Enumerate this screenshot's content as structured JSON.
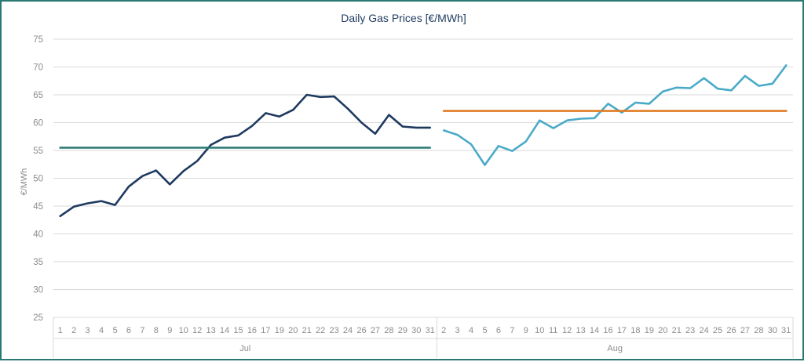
{
  "chart_data": {
    "type": "line",
    "title": "Daily Gas Prices [€/MWh]",
    "ylabel": "€/MWh",
    "xlabel": "",
    "ylim": [
      25,
      75
    ],
    "yticks": [
      25,
      30,
      35,
      40,
      45,
      50,
      55,
      60,
      65,
      70,
      75
    ],
    "grid": true,
    "legend": "none",
    "groups": [
      {
        "label": "Jul",
        "categories": [
          "1",
          "2",
          "3",
          "4",
          "5",
          "6",
          "7",
          "8",
          "9",
          "10",
          "12",
          "13",
          "14",
          "15",
          "16",
          "17",
          "19",
          "20",
          "21",
          "22",
          "23",
          "24",
          "26",
          "27",
          "28",
          "29",
          "30",
          "31"
        ]
      },
      {
        "label": "Aug",
        "categories": [
          "2",
          "3",
          "4",
          "5",
          "6",
          "7",
          "9",
          "10",
          "11",
          "12",
          "13",
          "14",
          "16",
          "17",
          "18",
          "19",
          "20",
          "21",
          "23",
          "24",
          "25",
          "26",
          "27",
          "28",
          "30",
          "31"
        ]
      }
    ],
    "series": [
      {
        "group": 0,
        "color": "#1f3a5f",
        "values": [
          43.2,
          44.9,
          45.5,
          45.9,
          45.2,
          48.5,
          50.4,
          51.4,
          48.9,
          51.3,
          53.1,
          56.0,
          57.3,
          57.7,
          59.4,
          61.7,
          61.1,
          62.3,
          65.0,
          64.6,
          64.7,
          62.5,
          60.0,
          58.0,
          61.4,
          59.3,
          59.1,
          59.1
        ]
      },
      {
        "group": 0,
        "color": "#2a7a73",
        "values": [
          55.5,
          55.5,
          55.5,
          55.5,
          55.5,
          55.5,
          55.5,
          55.5,
          55.5,
          55.5,
          55.5,
          55.5,
          55.5,
          55.5,
          55.5,
          55.5,
          55.5,
          55.5,
          55.5,
          55.5,
          55.5,
          55.5,
          55.5,
          55.5,
          55.5,
          55.5,
          55.5,
          55.5
        ]
      },
      {
        "group": 1,
        "color": "#4aaac8",
        "values": [
          58.6,
          57.8,
          56.1,
          52.4,
          55.8,
          54.9,
          56.6,
          60.4,
          59.0,
          60.4,
          60.7,
          60.8,
          63.4,
          61.8,
          63.6,
          63.4,
          65.6,
          66.3,
          66.2,
          68.0,
          66.1,
          65.8,
          68.4,
          66.6,
          67.0,
          70.3
        ]
      },
      {
        "group": 1,
        "color": "#e07b24",
        "values": [
          62.1,
          62.1,
          62.1,
          62.1,
          62.1,
          62.1,
          62.1,
          62.1,
          62.1,
          62.1,
          62.1,
          62.1,
          62.1,
          62.1,
          62.1,
          62.1,
          62.1,
          62.1,
          62.1,
          62.1,
          62.1,
          62.1,
          62.1,
          62.1,
          62.1,
          62.1
        ]
      }
    ]
  }
}
